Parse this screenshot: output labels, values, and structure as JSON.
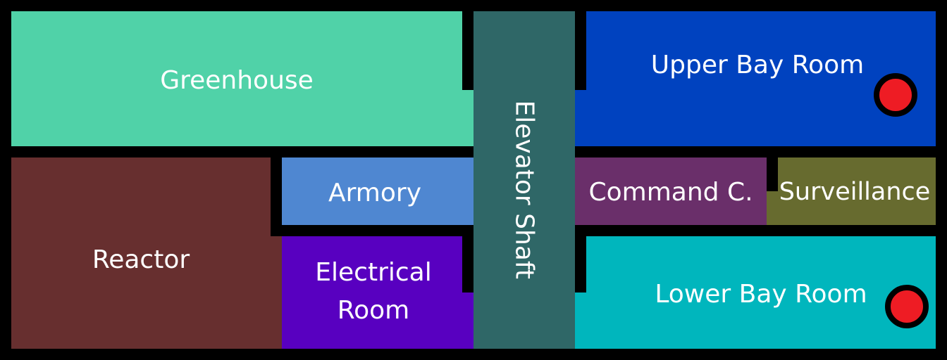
{
  "rooms": {
    "greenhouse": {
      "label": "Greenhouse",
      "color": "#50d2a8"
    },
    "elevator": {
      "label": "Elevator Shaft",
      "color": "#2f6767"
    },
    "upper_bay": {
      "label": "Upper Bay Room",
      "color": "#0042bf"
    },
    "reactor": {
      "label": "Reactor",
      "color": "#672f2f"
    },
    "armory": {
      "label": "Armory",
      "color": "#4f87d1"
    },
    "electrical": {
      "label": "Electrical\nRoom",
      "color": "#5800c0"
    },
    "command": {
      "label": "Command C.",
      "color": "#6a2f6a"
    },
    "surveillance": {
      "label": "Surveillance",
      "color": "#676b2f"
    },
    "lower_bay": {
      "label": "Lower Bay Room",
      "color": "#00b6bd"
    }
  },
  "markers": {
    "color": "#ee1c24",
    "names": [
      "upper-bay-marker",
      "lower-bay-marker"
    ]
  }
}
